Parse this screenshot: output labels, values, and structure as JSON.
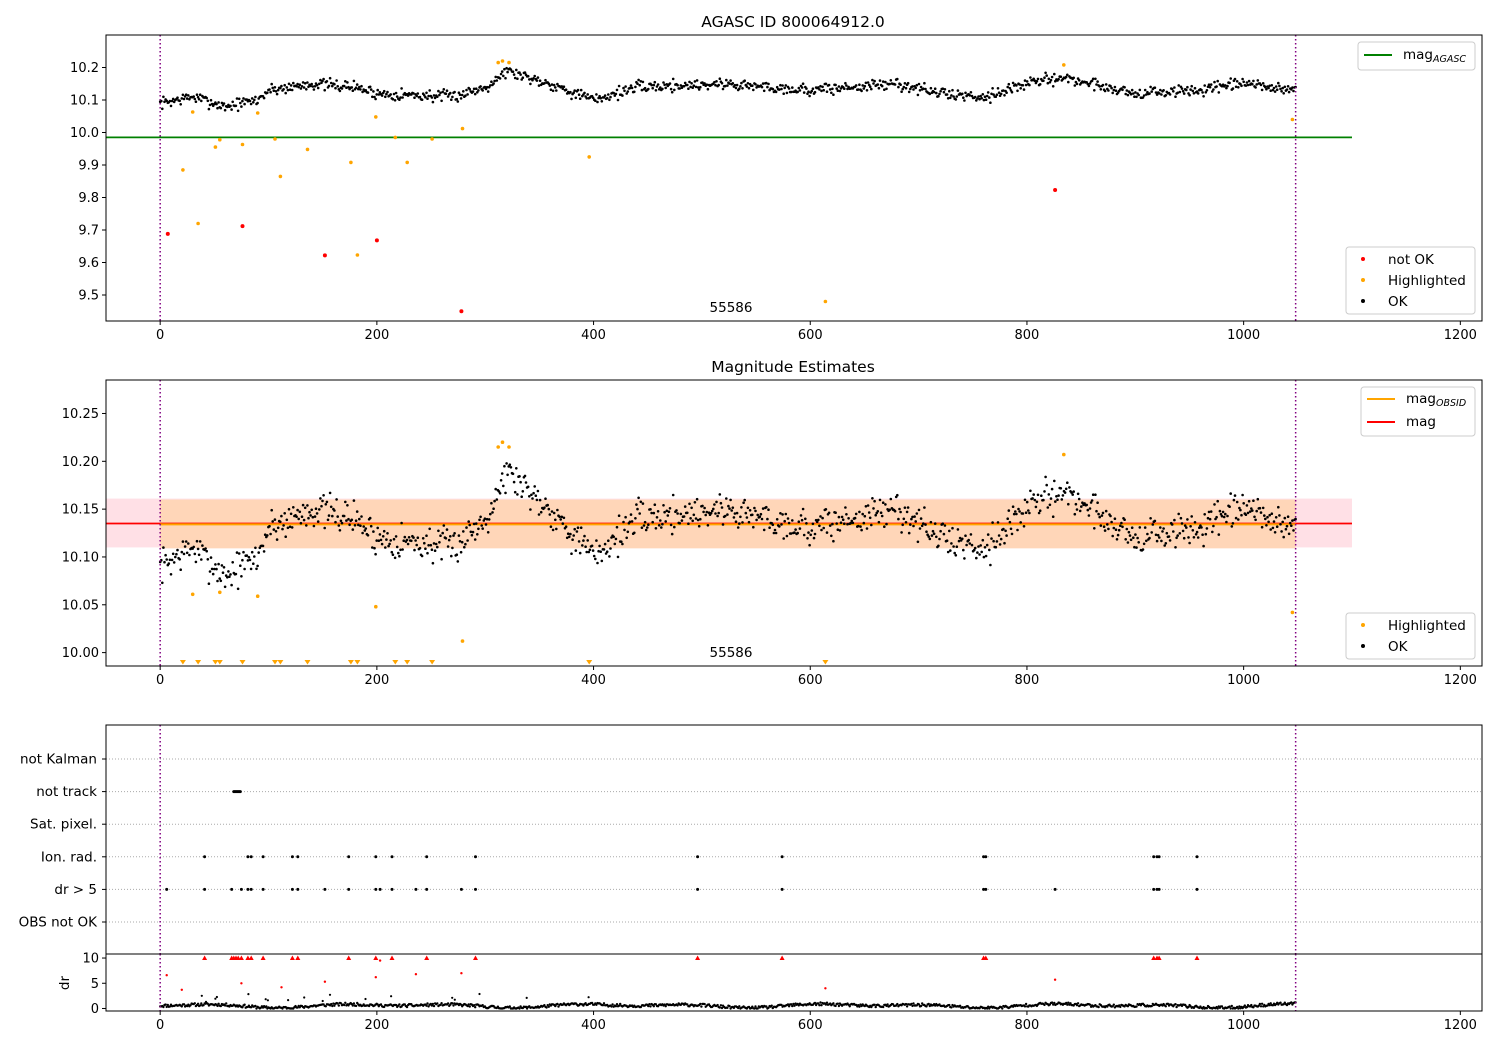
{
  "chart_data": [
    {
      "type": "scatter",
      "title": "AGASC ID 800064912.0",
      "annotation": "55586",
      "xlim": [
        -50,
        1220
      ],
      "ylim": [
        9.42,
        10.3
      ],
      "xticks": [
        0,
        200,
        400,
        600,
        800,
        1000,
        1200
      ],
      "yticks": [
        9.5,
        9.6,
        9.7,
        9.8,
        9.9,
        10.0,
        10.1,
        10.2
      ],
      "ytick_labels": [
        "9.5",
        "9.6",
        "9.7",
        "9.8",
        "9.9",
        "10.0",
        "10.1",
        "10.2"
      ],
      "vlines": [
        0,
        1048
      ],
      "colors": {
        "ok": "#000000",
        "highlighted": "#ffa500",
        "not_ok": "#ff0000",
        "mag_agasc": "#008000",
        "vline": "#800080"
      },
      "hlines": [
        {
          "name": "mag_agasc",
          "y": 9.985,
          "x": [
            -50,
            1100
          ]
        }
      ],
      "legend_lines": [
        {
          "label": "mag",
          "sub": "AGASC",
          "color": "#008000"
        }
      ],
      "legend_points": [
        {
          "label": "not OK",
          "color": "#ff0000"
        },
        {
          "label": "Highlighted",
          "color": "#ffa500"
        },
        {
          "label": "OK",
          "color": "#000000"
        }
      ],
      "ok_trend": {
        "x": [
          0,
          30,
          60,
          90,
          100,
          140,
          180,
          200,
          270,
          300,
          320,
          360,
          400,
          440,
          520,
          600,
          680,
          720,
          760,
          800,
          830,
          860,
          900,
          960,
          1000,
          1048
        ],
        "y": [
          10.09,
          10.11,
          10.08,
          10.1,
          10.13,
          10.15,
          10.14,
          10.12,
          10.11,
          10.14,
          10.19,
          10.15,
          10.1,
          10.14,
          10.15,
          10.13,
          10.15,
          10.12,
          10.11,
          10.15,
          10.17,
          10.15,
          10.12,
          10.13,
          10.15,
          10.13
        ],
        "noise": 0.018,
        "count": 1050
      },
      "highlighted": {
        "x": [
          21,
          30,
          35,
          51,
          55,
          76,
          90,
          106,
          111,
          136,
          176,
          182,
          199,
          217,
          228,
          251,
          279,
          312,
          316,
          322,
          396,
          614,
          834,
          1045
        ],
        "y": [
          9.885,
          10.063,
          9.72,
          9.955,
          9.978,
          9.963,
          10.06,
          9.98,
          9.865,
          9.948,
          9.908,
          9.623,
          10.048,
          9.985,
          9.908,
          9.98,
          10.012,
          10.215,
          10.22,
          10.215,
          9.925,
          9.48,
          10.208,
          10.04
        ]
      },
      "not_ok": {
        "x": [
          7,
          76,
          152,
          200,
          278,
          826
        ],
        "y": [
          9.688,
          9.712,
          9.622,
          9.668,
          9.45,
          9.823
        ]
      }
    },
    {
      "type": "scatter",
      "title": "Magnitude Estimates",
      "annotation": "55586",
      "xlim": [
        -50,
        1220
      ],
      "ylim": [
        9.986,
        10.285
      ],
      "xticks": [
        0,
        200,
        400,
        600,
        800,
        1000,
        1200
      ],
      "yticks": [
        10.0,
        10.05,
        10.1,
        10.15,
        10.2,
        10.25
      ],
      "ytick_labels": [
        "10.00",
        "10.05",
        "10.10",
        "10.15",
        "10.20",
        "10.25"
      ],
      "vlines": [
        0,
        1048
      ],
      "colors": {
        "ok": "#000000",
        "highlighted": "#ffa500",
        "mag_obsid": "#ffa500",
        "mag": "#ff0000",
        "band_outer": "#ffe0e6",
        "band_inner": "#ffd6b8"
      },
      "mag_line": {
        "y": 10.135,
        "x": [
          -50,
          1100
        ]
      },
      "mag_band": {
        "y": [
          10.11,
          10.161
        ],
        "x": [
          -50,
          1100
        ]
      },
      "mag_obsid_line": {
        "y": 10.134,
        "x": [
          0,
          1048
        ]
      },
      "mag_obsid_band": {
        "y": [
          10.109,
          10.16
        ],
        "x": [
          0,
          1048
        ]
      },
      "legend_lines": [
        {
          "label": "mag",
          "sub": "OBSID",
          "color": "#ffa500"
        },
        {
          "label": "mag",
          "sub": "",
          "color": "#ff0000"
        }
      ],
      "legend_points": [
        {
          "label": "Highlighted",
          "color": "#ffa500"
        },
        {
          "label": "OK",
          "color": "#000000"
        }
      ],
      "highlighted": {
        "x": [
          30,
          90,
          55,
          199,
          279,
          312,
          316,
          322,
          834,
          1045
        ],
        "y": [
          10.061,
          10.059,
          10.063,
          10.048,
          10.012,
          10.215,
          10.22,
          10.215,
          10.207,
          10.042
        ]
      },
      "below_limit": {
        "x": [
          21,
          35,
          51,
          55,
          76,
          106,
          111,
          136,
          176,
          182,
          217,
          228,
          251,
          396,
          614
        ]
      }
    },
    {
      "type": "scatter",
      "title": "",
      "xlim": [
        -50,
        1220
      ],
      "categories": [
        "not Kalman",
        "not track",
        "Sat. pixel.",
        "Ion. rad.",
        "dr > 5",
        "OBS not OK"
      ],
      "vlines": [
        0,
        1048
      ],
      "flags": {
        "not track": [
          68,
          69,
          70,
          71,
          72,
          73,
          74
        ],
        "Ion. rad.": [
          41,
          81,
          84,
          95,
          122,
          127,
          174,
          199,
          214,
          246,
          291,
          496,
          574,
          760,
          762,
          917,
          920,
          922,
          957
        ],
        "dr > 5": [
          6,
          41,
          66,
          75,
          81,
          84,
          95,
          122,
          127,
          152,
          174,
          199,
          203,
          214,
          236,
          246,
          278,
          291,
          496,
          574,
          760,
          762,
          826,
          917,
          920,
          922,
          957
        ]
      }
    },
    {
      "type": "scatter",
      "title": "",
      "ylabel": "dr",
      "xlim": [
        -50,
        1220
      ],
      "ylim": [
        -0.5,
        10.8
      ],
      "xticks": [
        0,
        200,
        400,
        600,
        800,
        1000,
        1200
      ],
      "yticks": [
        0,
        5,
        10
      ],
      "vlines": [
        0,
        1048
      ],
      "dr_high": {
        "x": [
          41,
          66,
          68,
          70,
          72,
          75,
          81,
          84,
          95,
          122,
          127,
          174,
          199,
          214,
          246,
          291,
          496,
          574,
          760,
          762,
          917,
          920,
          922,
          957
        ],
        "y": [
          10,
          10,
          10,
          10,
          10,
          10,
          10,
          10,
          10,
          10,
          10,
          10,
          10,
          10,
          10,
          10,
          10,
          10,
          10,
          10,
          10,
          10,
          10,
          10
        ]
      },
      "dr_mid": {
        "x": [
          6,
          20,
          75,
          112,
          152,
          199,
          203,
          236,
          278,
          614,
          826
        ],
        "y": [
          6.6,
          3.7,
          5.0,
          4.2,
          5.3,
          6.2,
          9.5,
          6.8,
          7.0,
          4.0,
          5.7
        ]
      }
    }
  ]
}
